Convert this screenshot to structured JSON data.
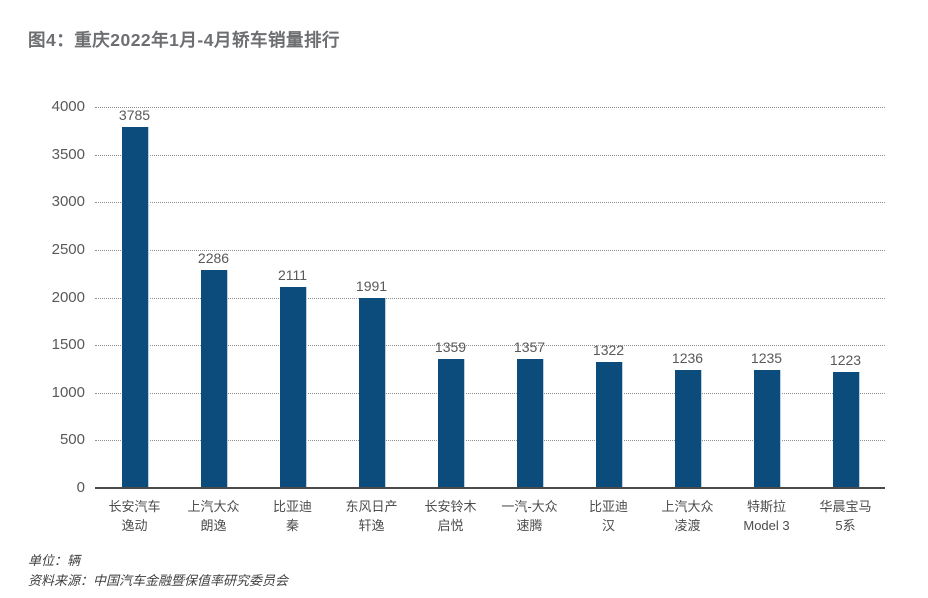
{
  "header": {
    "title": "图4：重庆2022年1月-4月轿车销量排行"
  },
  "footer": {
    "unit_note": "单位：辆",
    "source_note": "资料来源：中国汽车金融暨保值率研究委员会"
  },
  "colors": {
    "bar": "#0c4c7d",
    "title_text": "#6d6e71",
    "axis_text": "#595959",
    "gridline": "#8f8f8f",
    "baseline": "#4a4a4a"
  },
  "chart_data": {
    "type": "bar",
    "title": "图4：重庆2022年1月-4月轿车销量排行",
    "categories": [
      [
        "长安汽车",
        "逸动"
      ],
      [
        "上汽大众",
        "朗逸"
      ],
      [
        "比亚迪",
        "秦"
      ],
      [
        "东风日产",
        "轩逸"
      ],
      [
        "长安铃木",
        "启悦"
      ],
      [
        "一汽-大众",
        "速腾"
      ],
      [
        "比亚迪",
        "汉"
      ],
      [
        "上汽大众",
        "凌渡"
      ],
      [
        "特斯拉",
        "Model 3"
      ],
      [
        "华晨宝马",
        "5系"
      ]
    ],
    "values": [
      3785,
      2286,
      2111,
      1991,
      1359,
      1357,
      1322,
      1236,
      1235,
      1223
    ],
    "xlabel": "",
    "ylabel": "",
    "ylim": [
      0,
      4000
    ],
    "yticks": [
      0,
      500,
      1000,
      1500,
      2000,
      2500,
      3000,
      3500,
      4000
    ],
    "grid": "horizontal-dotted",
    "legend": "none",
    "unit": "辆",
    "bar_color": "#0c4c7d"
  }
}
